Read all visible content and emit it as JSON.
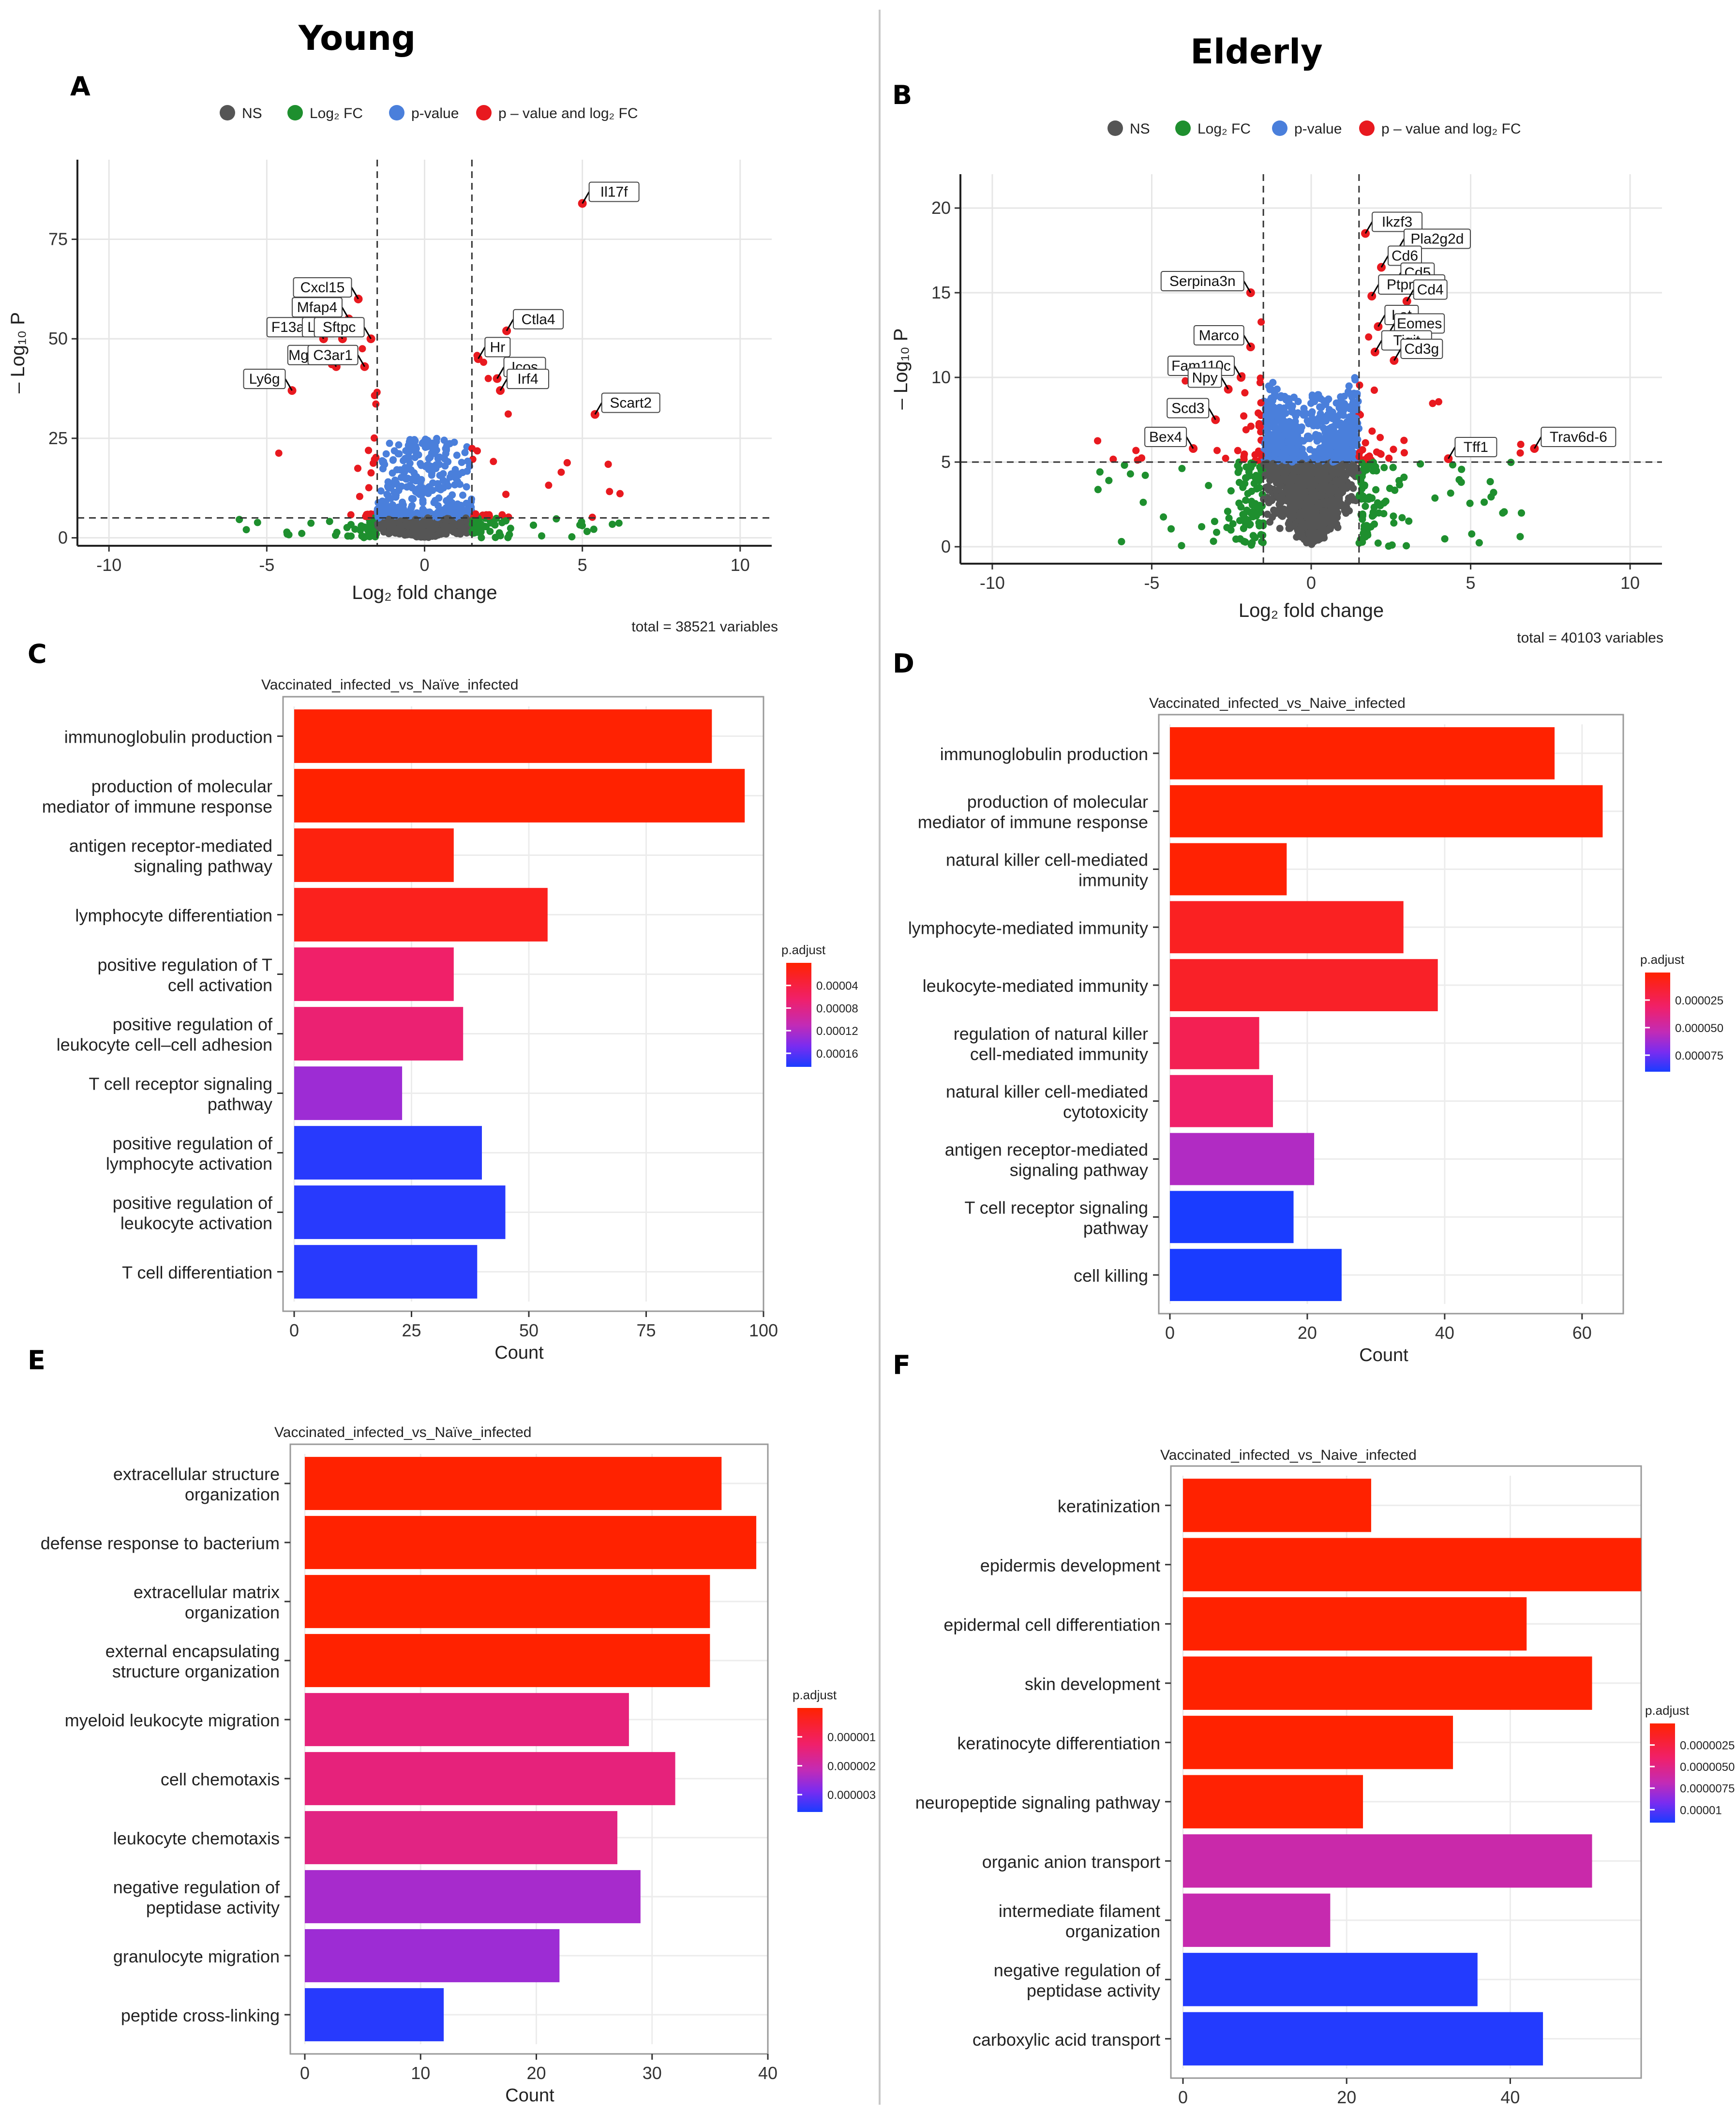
{
  "header": {
    "left_title": "Young",
    "right_title": "Elderly"
  },
  "panel_letters": [
    "A",
    "B",
    "C",
    "D",
    "E",
    "F"
  ],
  "colors": {
    "ns": "#555555",
    "fc": "#1e8f2e",
    "p": "#4a7fdb",
    "both": "#e8191f",
    "bar_high": "#ff2200",
    "bar_low": "#1a3cff"
  },
  "chart_data": [
    {
      "id": "A",
      "type": "scatter",
      "legend": [
        "NS",
        "Log₂ FC",
        "p-value",
        "p – value and log₂ FC"
      ],
      "xlabel": "Log₂ fold change",
      "ylabel": "– Log₁₀ P",
      "xlim": [
        -11,
        11
      ],
      "ylim": [
        -2,
        95
      ],
      "xticks": [
        -10,
        -5,
        0,
        5,
        10
      ],
      "yticks": [
        0,
        25,
        50,
        75
      ],
      "fc_cutoff": 1.5,
      "p_cutoff": 5,
      "caption": "total = 38521 variables",
      "labels": [
        {
          "text": "Il17f",
          "x": 5.0,
          "y": 84
        },
        {
          "text": "Cxcl15",
          "x": -2.1,
          "y": 60
        },
        {
          "text": "Mfap4",
          "x": -2.4,
          "y": 55
        },
        {
          "text": "Ctla4",
          "x": 2.6,
          "y": 52
        },
        {
          "text": "F13a1",
          "x": -3.2,
          "y": 50
        },
        {
          "text": "Lox",
          "x": -2.6,
          "y": 50
        },
        {
          "text": "Sftpc",
          "x": -1.7,
          "y": 50
        },
        {
          "text": "Hr",
          "x": 1.7,
          "y": 45
        },
        {
          "text": "Mgam",
          "x": -2.8,
          "y": 43
        },
        {
          "text": "C3ar1",
          "x": -1.9,
          "y": 43
        },
        {
          "text": "Icos",
          "x": 2.3,
          "y": 40
        },
        {
          "text": "Irf4",
          "x": 2.4,
          "y": 37
        },
        {
          "text": "Ly6g",
          "x": -4.2,
          "y": 37
        },
        {
          "text": "Scart2",
          "x": 5.4,
          "y": 31
        }
      ]
    },
    {
      "id": "B",
      "type": "scatter",
      "legend": [
        "NS",
        "Log₂ FC",
        "p-value",
        "p – value and log₂ FC"
      ],
      "xlabel": "Log₂ fold change",
      "ylabel": "– Log₁₀ P",
      "xlim": [
        -11,
        11
      ],
      "ylim": [
        -1,
        22
      ],
      "xticks": [
        -10,
        -5,
        0,
        5,
        10
      ],
      "yticks": [
        0,
        5,
        10,
        15,
        20
      ],
      "fc_cutoff": 1.5,
      "p_cutoff": 5,
      "caption": "total = 40103 variables",
      "labels": [
        {
          "text": "Ikzf3",
          "x": 1.7,
          "y": 18.5
        },
        {
          "text": "Pla2g2d",
          "x": 2.7,
          "y": 17.5
        },
        {
          "text": "Cd6",
          "x": 2.2,
          "y": 16.5
        },
        {
          "text": "Cd5",
          "x": 2.6,
          "y": 15.5
        },
        {
          "text": "Serpina3n",
          "x": -1.9,
          "y": 15.0
        },
        {
          "text": "Ptprcap",
          "x": 1.9,
          "y": 14.8
        },
        {
          "text": "Cd4",
          "x": 3.0,
          "y": 14.5
        },
        {
          "text": "Lat",
          "x": 2.1,
          "y": 13.0
        },
        {
          "text": "Eomes",
          "x": 2.4,
          "y": 12.5
        },
        {
          "text": "Marco",
          "x": -1.9,
          "y": 11.8
        },
        {
          "text": "Tigit",
          "x": 2.0,
          "y": 11.5
        },
        {
          "text": "Cd3g",
          "x": 2.6,
          "y": 11.0
        },
        {
          "text": "Fam110c",
          "x": -2.2,
          "y": 10.0
        },
        {
          "text": "Npy",
          "x": -2.6,
          "y": 9.3
        },
        {
          "text": "Scd3",
          "x": -3.0,
          "y": 7.5
        },
        {
          "text": "Bex4",
          "x": -3.7,
          "y": 5.8
        },
        {
          "text": "Tff1",
          "x": 4.3,
          "y": 5.2
        },
        {
          "text": "Trav6d-6",
          "x": 7.0,
          "y": 5.8
        }
      ]
    },
    {
      "id": "C",
      "type": "bar",
      "title": "Vaccinated_infected_vs_Naïve_infected",
      "xlabel": "Count",
      "xlim": [
        0,
        100
      ],
      "xticks": [
        0,
        25,
        50,
        75,
        100
      ],
      "legend_title": "p.adjust",
      "legend_ticks": [
        "0.00004",
        "0.00008",
        "0.00012",
        "0.00016"
      ],
      "categories": [
        "immunoglobulin production",
        "production of molecular\nmediator of immune response",
        "antigen receptor-mediated\nsignaling pathway",
        "lymphocyte differentiation",
        "positive regulation of T\ncell activation",
        "positive regulation of\nleukocyte cell–cell adhesion",
        "T cell receptor signaling\npathway",
        "positive regulation of\nlymphocyte activation",
        "positive regulation of\nleukocyte activation",
        "T cell differentiation"
      ],
      "values": [
        89,
        96,
        34,
        54,
        34,
        36,
        23,
        40,
        45,
        39
      ],
      "p_adjust": [
        3e-06,
        2e-06,
        1e-05,
        1.8e-05,
        6e-05,
        6.5e-05,
        0.00012,
        0.000165,
        0.000165,
        0.000165
      ],
      "p_range": [
        2e-06,
        0.00017
      ]
    },
    {
      "id": "D",
      "type": "bar",
      "title": "Vaccinated_infected_vs_Naive_infected",
      "xlabel": "Count",
      "xlim": [
        0,
        66
      ],
      "xticks": [
        0,
        20,
        40,
        60
      ],
      "legend_title": "p.adjust",
      "legend_ticks": [
        "0.000025",
        "0.000050",
        "0.000075"
      ],
      "categories": [
        "immunoglobulin production",
        "production of molecular\nmediator of immune response",
        "natural killer cell-mediated\nimmunity",
        "lymphocyte-mediated immunity",
        "leukocyte-mediated immunity",
        "regulation of natural killer\ncell-mediated immunity",
        "natural killer cell-mediated\ncytotoxicity",
        "antigen receptor-mediated\nsignaling pathway",
        "T cell receptor signaling\npathway",
        "cell killing"
      ],
      "values": [
        56,
        63,
        17,
        34,
        39,
        13,
        15,
        21,
        18,
        25
      ],
      "p_adjust": [
        1e-06,
        1e-06,
        2e-06,
        1.2e-05,
        1.4e-05,
        2.8e-05,
        3.5e-05,
        6.5e-05,
        0.0001,
        0.0001
      ],
      "p_range": [
        1e-06,
        0.0001
      ]
    },
    {
      "id": "E",
      "type": "bar",
      "title": "Vaccinated_infected_vs_Naïve_infected",
      "xlabel": "Count",
      "xlim": [
        0,
        40
      ],
      "xticks": [
        0,
        10,
        20,
        30,
        40
      ],
      "legend_title": "p.adjust",
      "legend_ticks": [
        "0.000001",
        "0.000002",
        "0.000003"
      ],
      "categories": [
        "extracellular structure\norganization",
        "defense response to bacterium",
        "extracellular matrix\norganization",
        "external encapsulating\nstructure organization",
        "myeloid leukocyte migration",
        "cell chemotaxis",
        "leukocyte chemotaxis",
        "negative regulation of\npeptidase activity",
        "granulocyte migration",
        "peptide cross-linking"
      ],
      "values": [
        36,
        39,
        35,
        35,
        28,
        32,
        27,
        29,
        22,
        12
      ],
      "p_adjust": [
        1e-07,
        1e-07,
        1e-07,
        1e-07,
        1.6e-06,
        1.6e-06,
        1.7e-06,
        2.6e-06,
        2.7e-06,
        3.7e-06
      ],
      "p_range": [
        1e-07,
        3.8e-06
      ]
    },
    {
      "id": "F",
      "type": "bar",
      "title": "Vaccinated_infected_vs_Naive_infected",
      "xlabel": "Count",
      "xlim": [
        0,
        56
      ],
      "xticks": [
        0,
        20,
        40
      ],
      "legend_title": "p.adjust",
      "legend_ticks": [
        "0.0000025",
        "0.0000050",
        "0.0000075",
        "0.00001"
      ],
      "categories": [
        "keratinization",
        "epidermis development",
        "epidermal cell differentiation",
        "skin development",
        "keratinocyte differentiation",
        "neuropeptide signaling pathway",
        "organic anion transport",
        "intermediate filament\norganization",
        "negative regulation of\npeptidase activity",
        "carboxylic acid transport"
      ],
      "values": [
        23,
        56,
        42,
        50,
        33,
        22,
        50,
        18,
        36,
        44
      ],
      "p_adjust": [
        1e-07,
        1e-07,
        1e-07,
        1e-07,
        1e-07,
        2e-07,
        6.2e-06,
        6.4e-06,
        1.08e-05,
        1.08e-05
      ],
      "p_range": [
        1e-07,
        1.1e-05
      ]
    }
  ]
}
